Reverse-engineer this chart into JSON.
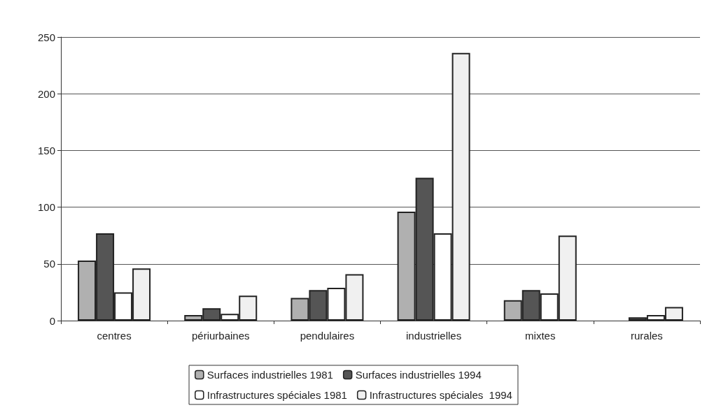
{
  "chart_data": {
    "type": "bar",
    "categories": [
      "centres",
      "périurbaines",
      "pendulaires",
      "industrielles",
      "mixtes",
      "rurales"
    ],
    "series": [
      {
        "name": "Surfaces industrielles 1981",
        "color": "#b0b0b0",
        "values": [
          53,
          5,
          20,
          96,
          18,
          null
        ]
      },
      {
        "name": "Surfaces industrielles 1994",
        "color": "#555555",
        "values": [
          77,
          11,
          27,
          126,
          27,
          3
        ]
      },
      {
        "name": "Infrastructures spéciales 1981",
        "color": "#ffffff",
        "values": [
          25,
          6,
          29,
          77,
          24,
          5
        ]
      },
      {
        "name": "Infrastructures spéciales  1994",
        "color": "#f0f0f0",
        "values": [
          46,
          22,
          41,
          236,
          75,
          12
        ]
      }
    ],
    "ylim": [
      0,
      250
    ],
    "yticks": [
      0,
      50,
      100,
      150,
      200,
      250
    ],
    "grid": "y",
    "legend": "bottom"
  }
}
